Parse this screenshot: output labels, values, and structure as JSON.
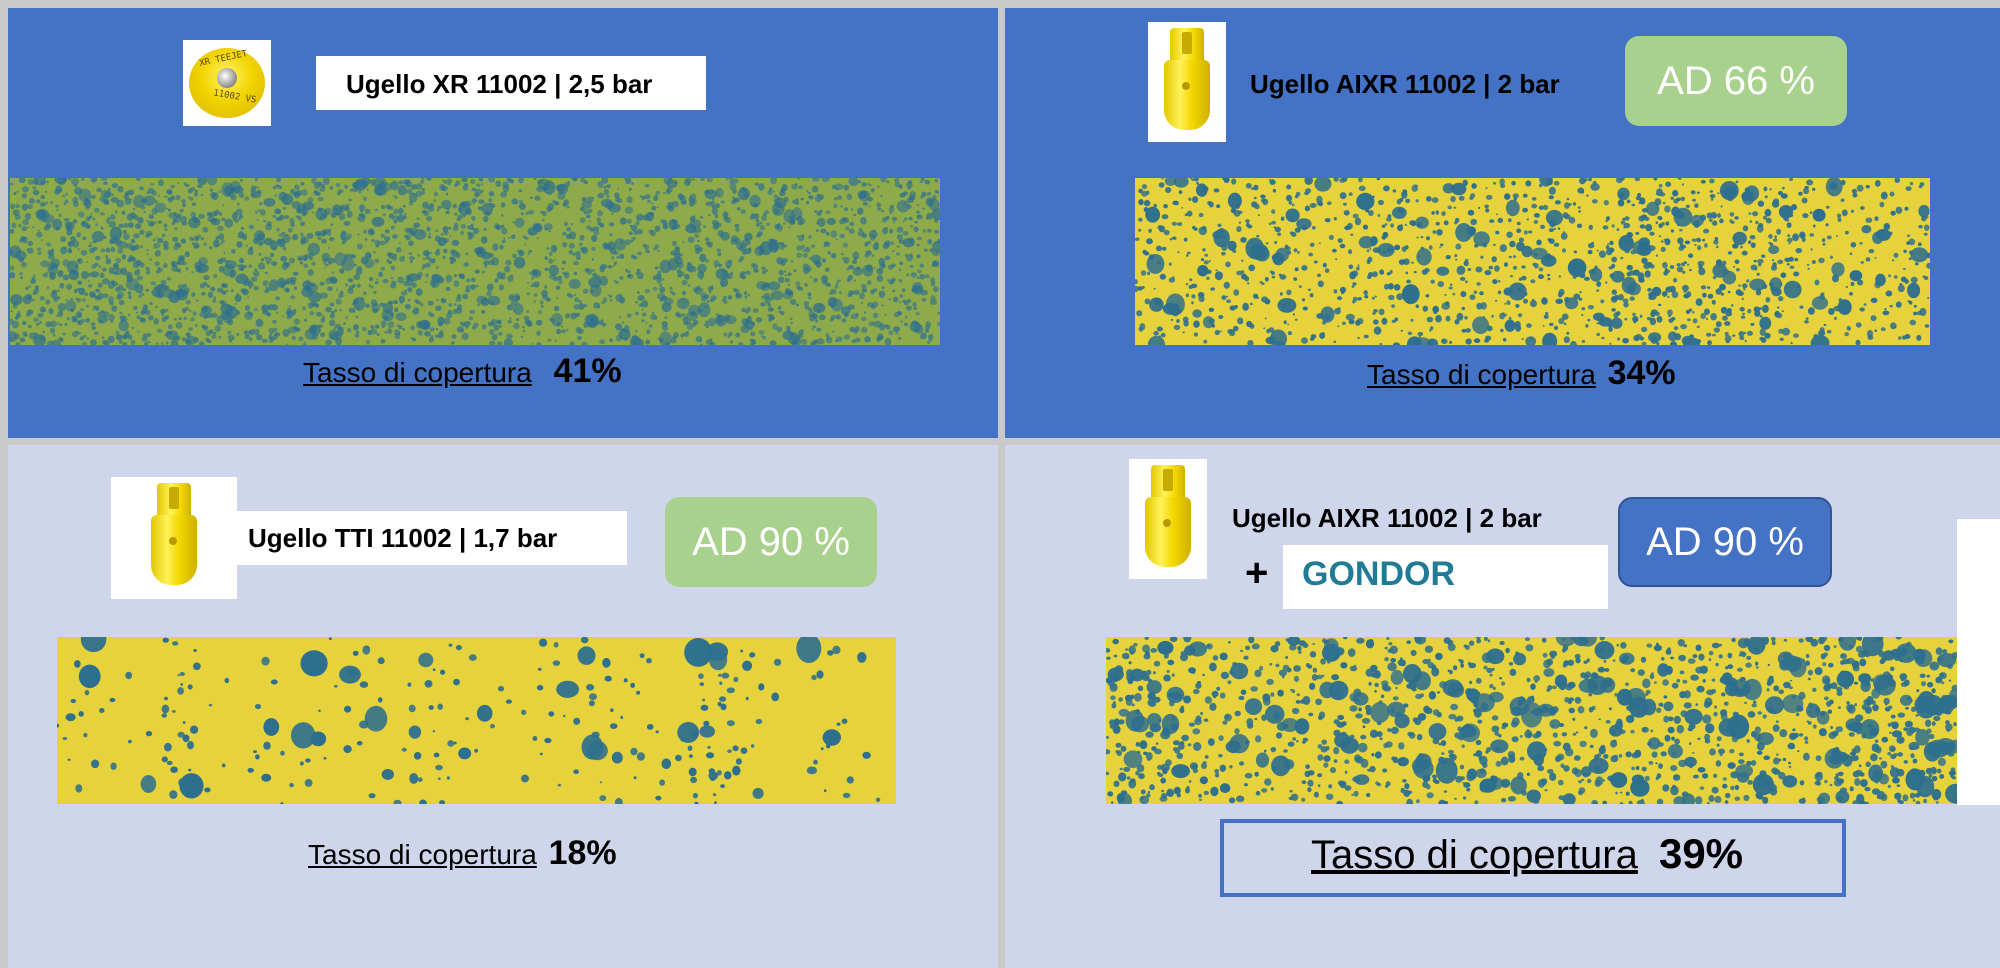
{
  "panels": {
    "top_left": {
      "nozzle_label": "Ugello XR 11002 | 2,5 bar",
      "nozzle_thumb_text_1": "XR TEEJET",
      "nozzle_thumb_text_2": "11002 VS",
      "coverage_label": "Tasso di copertura",
      "coverage_value": "41%",
      "coverage_percent": 41
    },
    "top_right": {
      "nozzle_label": "Ugello AIXR 11002 | 2 bar",
      "ad_badge": "AD 66 %",
      "coverage_label": "Tasso di copertura",
      "coverage_value": "34%",
      "coverage_percent": 34
    },
    "bottom_left": {
      "nozzle_label": "Ugello TTI 11002 | 1,7 bar",
      "ad_badge": "AD 90 %",
      "coverage_label": "Tasso di copertura",
      "coverage_value": "18%",
      "coverage_percent": 18
    },
    "bottom_right": {
      "nozzle_label": "Ugello AIXR 11002 | 2 bar",
      "plus_sign": "+",
      "additive": "GONDOR",
      "ad_badge": "AD 90 %",
      "coverage_label": "Tasso di copertura",
      "coverage_value": "39%",
      "coverage_percent": 39
    }
  },
  "colors": {
    "top_panel_bg": "#4472c4",
    "bottom_panel_bg": "#cfd5ea",
    "badge_green": "#a9d18e",
    "badge_blue": "#4472c4",
    "additive_text": "#1f7c94",
    "card_yellow": "#e6d23c",
    "droplet_blue": "#2e6f8e"
  }
}
